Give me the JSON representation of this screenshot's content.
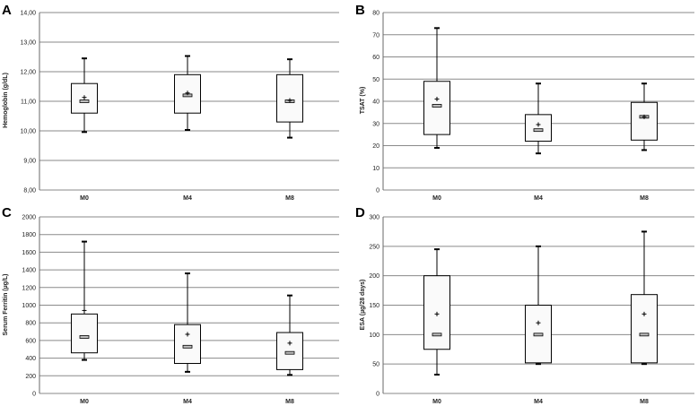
{
  "chart_data": [
    {
      "type": "box",
      "panel_label": "A",
      "ylabel": "Hemoglobin (g/dL)",
      "ylim": [
        8,
        14
      ],
      "yticks": [
        "8,00",
        "9,00",
        "10,00",
        "11,00",
        "12,00",
        "13,00",
        "14,00"
      ],
      "categories": [
        "M0",
        "M4",
        "M8"
      ],
      "boxes": [
        {
          "min": 9.96,
          "q1": 10.6,
          "median": 11.0,
          "q3": 11.6,
          "max": 12.45,
          "mean": 11.13
        },
        {
          "min": 10.03,
          "q1": 10.6,
          "median": 11.2,
          "q3": 11.9,
          "max": 12.53,
          "mean": 11.28
        },
        {
          "min": 9.77,
          "q1": 10.3,
          "median": 11.0,
          "q3": 11.9,
          "max": 12.42,
          "mean": 11.03
        }
      ]
    },
    {
      "type": "box",
      "panel_label": "B",
      "ylabel": "TSAT (%)",
      "ylim": [
        0,
        80
      ],
      "yticks": [
        "0",
        "10",
        "20",
        "30",
        "40",
        "50",
        "60",
        "70",
        "80"
      ],
      "categories": [
        "M0",
        "M4",
        "M8"
      ],
      "boxes": [
        {
          "min": 19,
          "q1": 25,
          "median": 38,
          "q3": 49,
          "max": 73,
          "mean": 41
        },
        {
          "min": 16.5,
          "q1": 22,
          "median": 27,
          "q3": 34,
          "max": 48,
          "mean": 29.5
        },
        {
          "min": 18,
          "q1": 22.5,
          "median": 33,
          "q3": 39.5,
          "max": 48,
          "mean": 33
        }
      ]
    },
    {
      "type": "box",
      "panel_label": "C",
      "ylabel": "Serum Ferritin (µg/L)",
      "ylim": [
        0,
        2000
      ],
      "yticks": [
        "0",
        "200",
        "400",
        "600",
        "800",
        "1000",
        "1200",
        "1400",
        "1600",
        "1800",
        "2000"
      ],
      "categories": [
        "M0",
        "M4",
        "M8"
      ],
      "boxes": [
        {
          "min": 380,
          "q1": 460,
          "median": 640,
          "q3": 900,
          "max": 1720,
          "mean": 940
        },
        {
          "min": 245,
          "q1": 340,
          "median": 530,
          "q3": 780,
          "max": 1360,
          "mean": 670
        },
        {
          "min": 210,
          "q1": 270,
          "median": 460,
          "q3": 690,
          "max": 1110,
          "mean": 570
        }
      ]
    },
    {
      "type": "box",
      "panel_label": "D",
      "ylabel": "ESA (µg/28 days)",
      "ylim": [
        0,
        300
      ],
      "yticks": [
        "0",
        "50",
        "100",
        "150",
        "200",
        "250",
        "300"
      ],
      "categories": [
        "M0",
        "M4",
        "M8"
      ],
      "boxes": [
        {
          "min": 32,
          "q1": 75,
          "median": 100,
          "q3": 200,
          "max": 245,
          "mean": 135
        },
        {
          "min": 50,
          "q1": 52,
          "median": 100,
          "q3": 150,
          "max": 250,
          "mean": 120
        },
        {
          "min": 50,
          "q1": 52,
          "median": 100,
          "q3": 168,
          "max": 275,
          "mean": 135
        }
      ]
    }
  ]
}
